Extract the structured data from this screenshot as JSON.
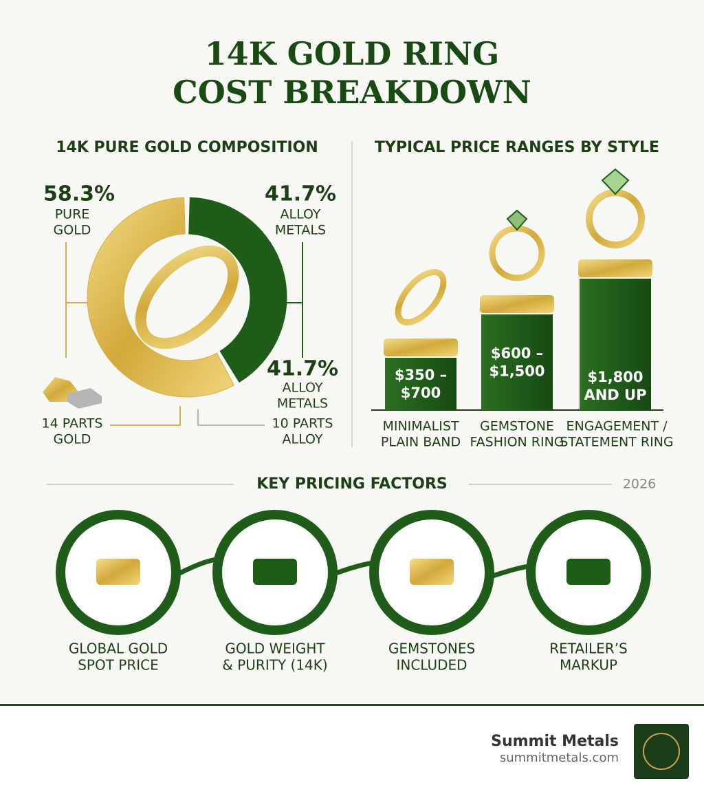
{
  "title_lines": [
    "14K GOLD RING",
    "COST BREAKDOWN"
  ],
  "chart_data": [
    {
      "type": "pie",
      "title": "14K PURE GOLD COMPOSITION",
      "categories": [
        [
          "PURE",
          "GOLD"
        ],
        [
          "ALLOY",
          "METALS"
        ]
      ],
      "values": [
        58.3,
        41.7
      ],
      "value_labels": [
        "58.3%",
        "41.7%"
      ],
      "colors": [
        "#d4b04a",
        "#1f5c1a"
      ],
      "annotations": [
        {
          "value_label": "41.7%",
          "lines": [
            "ALLOY",
            "METALS"
          ]
        },
        {
          "lines": [
            "14 PARTS",
            "GOLD"
          ]
        },
        {
          "lines": [
            "10 PARTS",
            "ALLOY"
          ]
        }
      ]
    }
  ],
  "price_ranges": {
    "title": "TYPICAL PRICE RANGES BY STYLE",
    "items": [
      {
        "price": [
          "$350 –",
          "$700"
        ],
        "style": [
          "MINIMALIST",
          "PLAIN BAND"
        ]
      },
      {
        "price": [
          "$600 –",
          "$1,500"
        ],
        "style": [
          "GEMSTONE",
          "FASHION RING"
        ]
      },
      {
        "price": [
          "$1,800",
          "AND UP"
        ],
        "style": [
          "ENGAGEMENT /",
          "STATEMENT RING"
        ]
      }
    ]
  },
  "factors": {
    "title": "KEY PRICING FACTORS",
    "year": "2026",
    "items": [
      [
        "GLOBAL GOLD",
        "SPOT PRICE"
      ],
      [
        "GOLD WEIGHT",
        "& PURITY (14K)"
      ],
      [
        "GEMSTONES",
        "INCLUDED"
      ],
      [
        "RETAILER’S",
        "MARKUP"
      ]
    ]
  },
  "footer": {
    "brand": "Summit Metals",
    "url": "summitmetals.com"
  }
}
